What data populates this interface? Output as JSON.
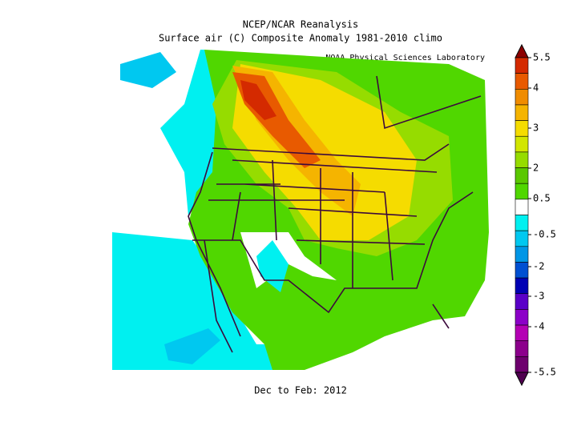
{
  "header": {
    "title": "NCEP/NCAR Reanalysis",
    "subtitle": "Surface air (C) Composite Anomaly 1981-2010 climo",
    "credit": "NOAA Physical Sciences Laboratory"
  },
  "caption": "Dec to Feb: 2012",
  "colorbar": {
    "colors": [
      "#8c0000",
      "#d42a00",
      "#e85a00",
      "#f08c00",
      "#f5b400",
      "#f5dc00",
      "#d2e600",
      "#96dc00",
      "#5ac800",
      "#50d700",
      "#ffffff",
      "#00f0f0",
      "#00c8f0",
      "#0096e6",
      "#0050d2",
      "#0000b4",
      "#5a00c8",
      "#8c00c8",
      "#b400b4",
      "#8c008c",
      "#6e006e",
      "#500050"
    ],
    "ticks": [
      5.5,
      4,
      3,
      2,
      0.5,
      -0.5,
      -2,
      -3,
      -4,
      -5.5
    ]
  }
}
